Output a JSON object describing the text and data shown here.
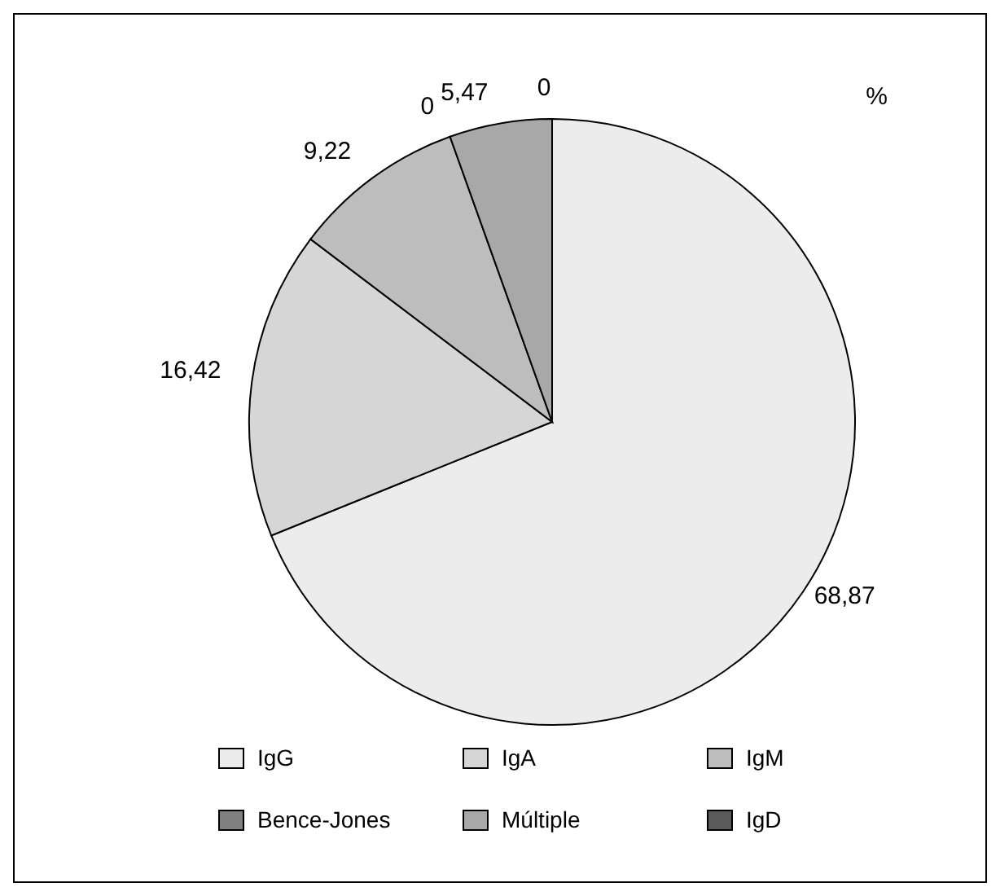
{
  "chart_data": {
    "type": "pie",
    "categories": [
      "IgG",
      "IgA",
      "IgM",
      "Bence-Jones",
      "Múltiple",
      "IgD"
    ],
    "values": [
      68.87,
      16.42,
      9.22,
      0,
      5.47,
      0
    ],
    "value_labels": [
      "68,87",
      "16,42",
      "9,22",
      "0",
      "5,47",
      "0"
    ],
    "colors": [
      "#ececec",
      "#d6d6d6",
      "#bdbdbd",
      "#808080",
      "#a8a8a8",
      "#5a5a5a"
    ],
    "annotations": [
      "%"
    ],
    "legend": "bottom"
  }
}
